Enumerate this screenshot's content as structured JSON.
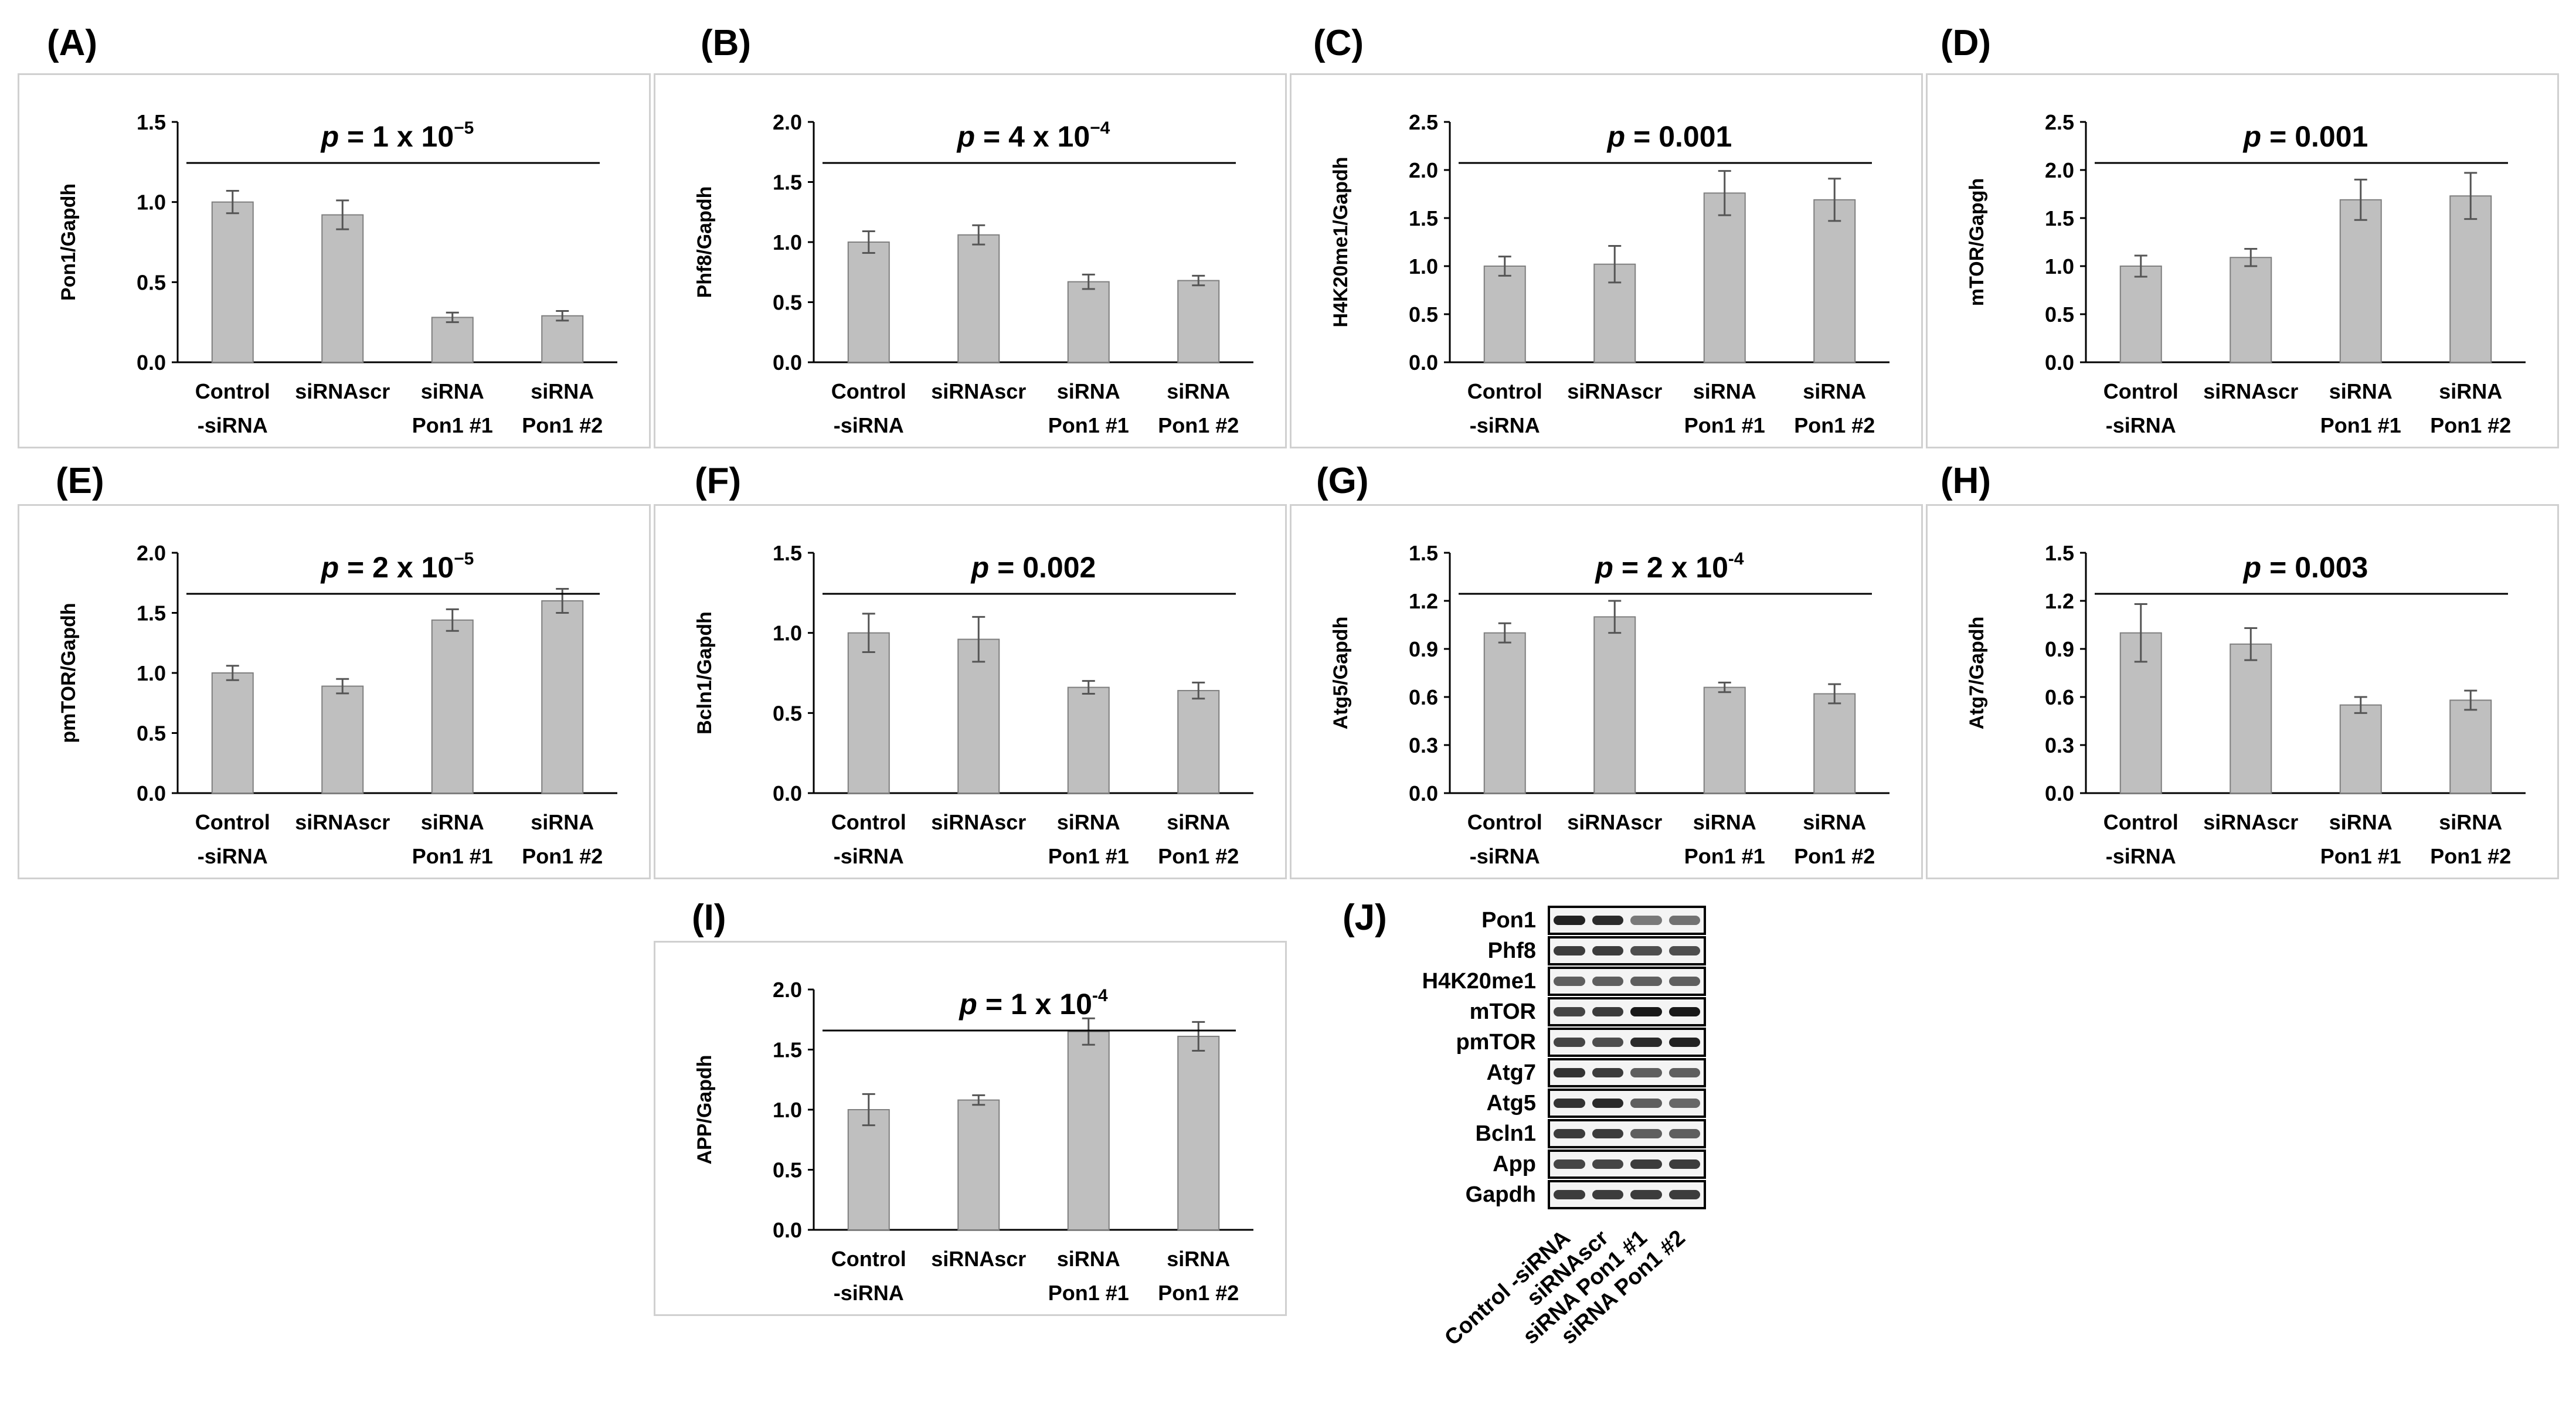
{
  "chart_data": [
    {
      "id": "A",
      "panel": "(A)",
      "type": "bar",
      "categories": [
        "Control\n-siRNA",
        "siRNAscr",
        "siRNA\nPon1 #1",
        "siRNA\nPon1 #2"
      ],
      "values": [
        1.0,
        0.92,
        0.28,
        0.29
      ],
      "errors": [
        0.07,
        0.09,
        0.03,
        0.03
      ],
      "ylabel": "Pon1/Gapdh",
      "ylim": [
        0,
        1.5
      ],
      "yticks": [
        "0.0",
        "0.5",
        "1.0",
        "1.5"
      ],
      "p_value": {
        "prefix": "p",
        "text": " = 1 x 10",
        "exp": "−5"
      }
    },
    {
      "id": "B",
      "panel": "(B)",
      "type": "bar",
      "categories": [
        "Control\n-siRNA",
        "siRNAscr",
        "siRNA\nPon1 #1",
        "siRNA\nPon1 #2"
      ],
      "values": [
        1.0,
        1.06,
        0.67,
        0.68
      ],
      "errors": [
        0.09,
        0.08,
        0.06,
        0.04
      ],
      "ylabel": "Phf8/Gapdh",
      "ylim": [
        0,
        2.0
      ],
      "yticks": [
        "0.0",
        "0.5",
        "1.0",
        "1.5",
        "2.0"
      ],
      "p_value": {
        "prefix": "p",
        "text": " = 4 x 10",
        "exp": "−4"
      }
    },
    {
      "id": "C",
      "panel": "(C)",
      "type": "bar",
      "categories": [
        "Control\n-siRNA",
        "siRNAscr",
        "siRNA\nPon1 #1",
        "siRNA\nPon1 #2"
      ],
      "values": [
        1.0,
        1.02,
        1.76,
        1.69
      ],
      "errors": [
        0.1,
        0.19,
        0.23,
        0.22
      ],
      "ylabel": "H4K20me1/Gapdh",
      "ylim": [
        0,
        2.5
      ],
      "yticks": [
        "0.0",
        "0.5",
        "1.0",
        "1.5",
        "2.0",
        "2.5"
      ],
      "p_value": {
        "prefix": "p",
        "text": " = 0.001",
        "exp": ""
      }
    },
    {
      "id": "D",
      "panel": "(D)",
      "type": "bar",
      "categories": [
        "Control\n-siRNA",
        "siRNAscr",
        "siRNA\nPon1 #1",
        "siRNA\nPon1 #2"
      ],
      "values": [
        1.0,
        1.09,
        1.69,
        1.73
      ],
      "errors": [
        0.11,
        0.09,
        0.21,
        0.24
      ],
      "ylabel": "mTOR/Gapgh",
      "ylim": [
        0,
        2.5
      ],
      "yticks": [
        "0.0",
        "0.5",
        "1.0",
        "1.5",
        "2.0",
        "2.5"
      ],
      "p_value": {
        "prefix": "p",
        "text": " = 0.001",
        "exp": ""
      }
    },
    {
      "id": "E",
      "panel": "(E)",
      "type": "bar",
      "categories": [
        "Control\n-siRNA",
        "siRNAscr",
        "siRNA\nPon1 #1",
        "siRNA\nPon1 #2"
      ],
      "values": [
        1.0,
        0.89,
        1.44,
        1.6
      ],
      "errors": [
        0.06,
        0.06,
        0.09,
        0.1
      ],
      "ylabel": "pmTOR/Gapdh",
      "ylim": [
        0,
        2.0
      ],
      "yticks": [
        "0.0",
        "0.5",
        "1.0",
        "1.5",
        "2.0"
      ],
      "p_value": {
        "prefix": "p",
        "text": " = 2 x 10",
        "exp": "−5"
      }
    },
    {
      "id": "F",
      "panel": "(F)",
      "type": "bar",
      "categories": [
        "Control\n-siRNA",
        "siRNAscr",
        "siRNA\nPon1 #1",
        "siRNA\nPon1 #2"
      ],
      "values": [
        1.0,
        0.96,
        0.66,
        0.64
      ],
      "errors": [
        0.12,
        0.14,
        0.04,
        0.05
      ],
      "ylabel": "Bcln1/Gapdh",
      "ylim": [
        0,
        1.5
      ],
      "yticks": [
        "0.0",
        "0.5",
        "1.0",
        "1.5"
      ],
      "p_value": {
        "prefix": "p",
        "text": " = 0.002",
        "exp": ""
      }
    },
    {
      "id": "G",
      "panel": "(G)",
      "type": "bar",
      "categories": [
        "Control\n-siRNA",
        "siRNAscr",
        "siRNA\nPon1 #1",
        "siRNA\nPon1 #2"
      ],
      "values": [
        1.0,
        1.1,
        0.66,
        0.62
      ],
      "errors": [
        0.06,
        0.1,
        0.03,
        0.06
      ],
      "ylabel": "Atg5/Gapdh",
      "ylim": [
        0,
        1.5
      ],
      "yticks": [
        "0.0",
        "0.3",
        "0.6",
        "0.9",
        "1.2",
        "1.5"
      ],
      "p_value": {
        "prefix": "p",
        "text": " = 2 x 10",
        "exp": "-4"
      }
    },
    {
      "id": "H",
      "panel": "(H)",
      "type": "bar",
      "categories": [
        "Control\n-siRNA",
        "siRNAscr",
        "siRNA\nPon1 #1",
        "siRNA\nPon1 #2"
      ],
      "values": [
        1.0,
        0.93,
        0.55,
        0.58
      ],
      "errors": [
        0.18,
        0.1,
        0.05,
        0.06
      ],
      "ylabel": "Atg7/Gapdh",
      "ylim": [
        0,
        1.5
      ],
      "yticks": [
        "0.0",
        "0.3",
        "0.6",
        "0.9",
        "1.2",
        "1.5"
      ],
      "p_value": {
        "prefix": "p",
        "text": " = 0.003",
        "exp": ""
      }
    },
    {
      "id": "I",
      "panel": "(I)",
      "type": "bar",
      "categories": [
        "Control\n-siRNA",
        "siRNAscr",
        "siRNA\nPon1 #1",
        "siRNA\nPon1 #2"
      ],
      "values": [
        1.0,
        1.08,
        1.65,
        1.61
      ],
      "errors": [
        0.13,
        0.04,
        0.11,
        0.12
      ],
      "ylabel": "APP/Gapdh",
      "ylim": [
        0,
        2.0
      ],
      "yticks": [
        "0.0",
        "0.5",
        "1.0",
        "1.5",
        "2.0"
      ],
      "p_value": {
        "prefix": "p",
        "text": " = 1 x 10",
        "exp": "-4"
      }
    }
  ],
  "western_blot": {
    "panel": "(J)",
    "rows": [
      "Pon1",
      "Phf8",
      "H4K20me1",
      "mTOR",
      "pmTOR",
      "Atg7",
      "Atg5",
      "Bcln1",
      "App",
      "Gapdh"
    ],
    "lanes": [
      "Control -siRNA",
      "siRNAscr",
      "siRNA Pon1 #1",
      "siRNA Pon1  #2"
    ],
    "band_intensity": [
      [
        0.95,
        0.9,
        0.45,
        0.5
      ],
      [
        0.8,
        0.8,
        0.7,
        0.7
      ],
      [
        0.6,
        0.6,
        0.6,
        0.6
      ],
      [
        0.75,
        0.8,
        1.0,
        1.0
      ],
      [
        0.75,
        0.7,
        0.9,
        0.95
      ],
      [
        0.85,
        0.8,
        0.6,
        0.6
      ],
      [
        0.85,
        0.9,
        0.6,
        0.55
      ],
      [
        0.8,
        0.8,
        0.6,
        0.6
      ],
      [
        0.75,
        0.75,
        0.8,
        0.8
      ],
      [
        0.8,
        0.8,
        0.8,
        0.8
      ]
    ]
  },
  "colors": {
    "bar": "#bfbfbf",
    "bar_edge": "#7f7f7f",
    "axis": "#000000",
    "border": "#d0d0d0"
  }
}
